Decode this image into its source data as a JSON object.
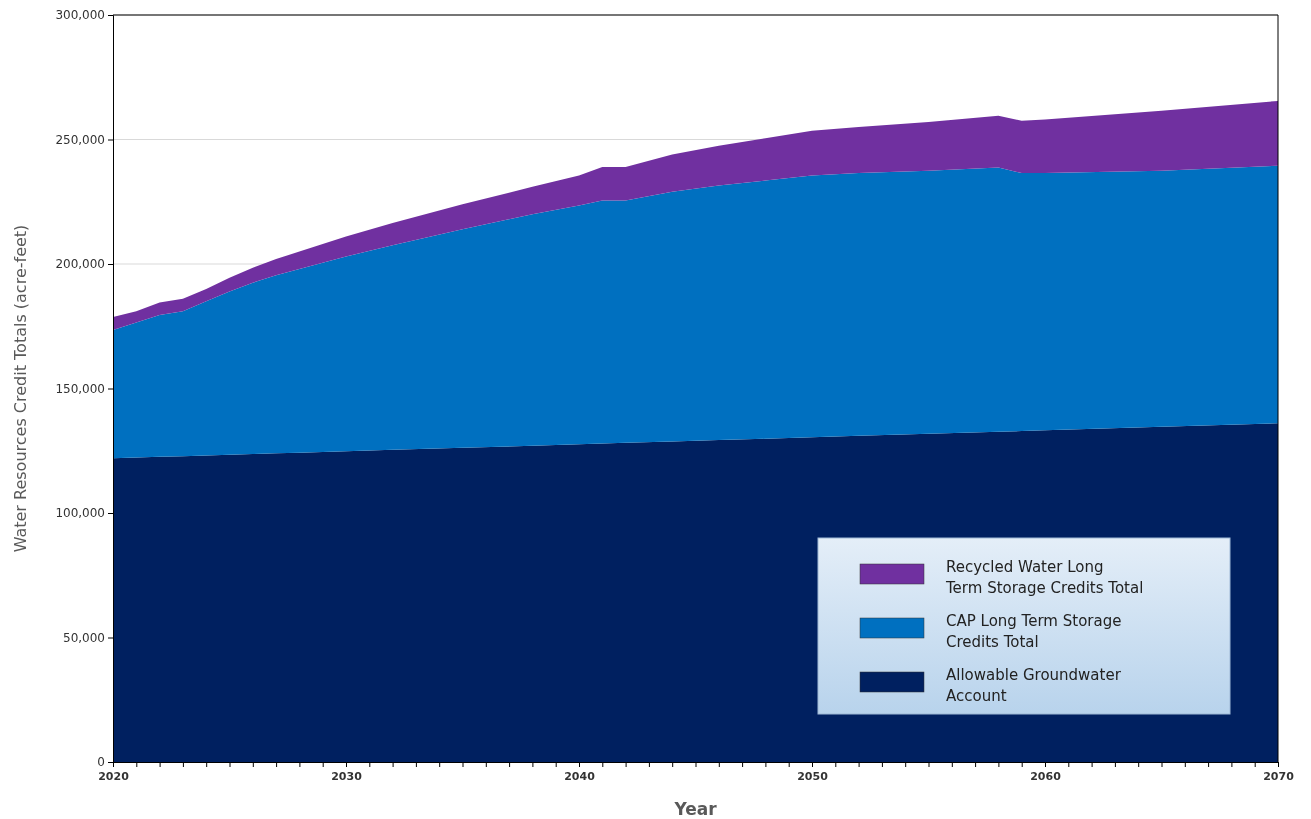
{
  "chart_data": {
    "type": "area",
    "stacked": true,
    "xlabel": "Year",
    "ylabel": "Water Resources Credit Totals (acre-feet)",
    "x": [
      2020,
      2021,
      2022,
      2023,
      2024,
      2025,
      2026,
      2027,
      2028,
      2029,
      2030,
      2032,
      2035,
      2038,
      2040,
      2041,
      2042,
      2044,
      2046,
      2048,
      2050,
      2052,
      2055,
      2058,
      2059,
      2060,
      2065,
      2070
    ],
    "series": [
      {
        "name": "Allowable Groundwater Account",
        "color": "#002060",
        "values": [
          122000,
          122300,
          122600,
          122800,
          123100,
          123400,
          123700,
          124000,
          124200,
          124500,
          124800,
          125400,
          126200,
          127000,
          127600,
          127900,
          128200,
          128700,
          129300,
          129800,
          130400,
          131000,
          131800,
          132600,
          132900,
          133200,
          134600,
          136000
        ]
      },
      {
        "name": "CAP Long Term Storage Credits Total",
        "color": "#0070c0",
        "values": [
          51500,
          54200,
          56900,
          58200,
          61900,
          65600,
          68800,
          71500,
          73800,
          76000,
          78200,
          82100,
          87800,
          93000,
          95900,
          97600,
          97300,
          100300,
          102200,
          103700,
          105100,
          105500,
          105700,
          106200,
          103600,
          103300,
          102900,
          103500
        ]
      },
      {
        "name": "Recycled Water Long Term Storage Credits Total",
        "color": "#7030a0",
        "values": [
          5200,
          4500,
          5000,
          5000,
          5000,
          5500,
          6000,
          6500,
          7000,
          7500,
          8000,
          9000,
          10000,
          11000,
          12000,
          13500,
          13500,
          15000,
          16000,
          17000,
          18000,
          18500,
          19500,
          20700,
          21000,
          21500,
          24000,
          26000
        ]
      }
    ],
    "xlim": [
      2020,
      2070
    ],
    "xticks": [
      2020,
      {
        "value": 2021,
        "label": null
      },
      {
        "value": 2022,
        "label": null
      },
      {
        "value": 2023,
        "label": null
      },
      {
        "value": 2024,
        "label": null
      },
      {
        "value": 2025,
        "label": null
      },
      {
        "value": 2026,
        "label": null
      },
      {
        "value": 2027,
        "label": null
      },
      {
        "value": 2028,
        "label": null
      },
      {
        "value": 2029,
        "label": null
      },
      2030,
      {
        "value": 2031,
        "label": null
      },
      {
        "value": 2032,
        "label": null
      },
      {
        "value": 2033,
        "label": null
      },
      {
        "value": 2034,
        "label": null
      },
      {
        "value": 2035,
        "label": null
      },
      {
        "value": 2036,
        "label": null
      },
      {
        "value": 2037,
        "label": null
      },
      {
        "value": 2038,
        "label": null
      },
      {
        "value": 2039,
        "label": null
      },
      2040,
      {
        "value": 2041,
        "label": null
      },
      {
        "value": 2042,
        "label": null
      },
      {
        "value": 2043,
        "label": null
      },
      {
        "value": 2044,
        "label": null
      },
      {
        "value": 2045,
        "label": null
      },
      {
        "value": 2046,
        "label": null
      },
      {
        "value": 2047,
        "label": null
      },
      {
        "value": 2048,
        "label": null
      },
      {
        "value": 2049,
        "label": null
      },
      2050,
      {
        "value": 2051,
        "label": null
      },
      {
        "value": 2052,
        "label": null
      },
      {
        "value": 2053,
        "label": null
      },
      {
        "value": 2054,
        "label": null
      },
      {
        "value": 2055,
        "label": null
      },
      {
        "value": 2056,
        "label": null
      },
      {
        "value": 2057,
        "label": null
      },
      {
        "value": 2058,
        "label": null
      },
      {
        "value": 2059,
        "label": null
      },
      2060,
      {
        "value": 2061,
        "label": null
      },
      {
        "value": 2062,
        "label": null
      },
      {
        "value": 2063,
        "label": null
      },
      {
        "value": 2064,
        "label": null
      },
      {
        "value": 2065,
        "label": null
      },
      {
        "value": 2066,
        "label": null
      },
      {
        "value": 2067,
        "label": null
      },
      {
        "value": 2068,
        "label": null
      },
      {
        "value": 2069,
        "label": null
      },
      2070
    ],
    "ylim": [
      0,
      300000
    ],
    "yticks": [
      0,
      {
        "value": 50000,
        "label": "50,000"
      },
      {
        "value": 100000,
        "label": "100,000"
      },
      {
        "value": 150000,
        "label": "150,000"
      },
      {
        "value": 200000,
        "label": "200,000"
      },
      {
        "value": 250000,
        "label": "250,000"
      },
      {
        "value": 300000,
        "label": "300,000"
      }
    ],
    "grid": "y",
    "legend": "bottom right"
  }
}
